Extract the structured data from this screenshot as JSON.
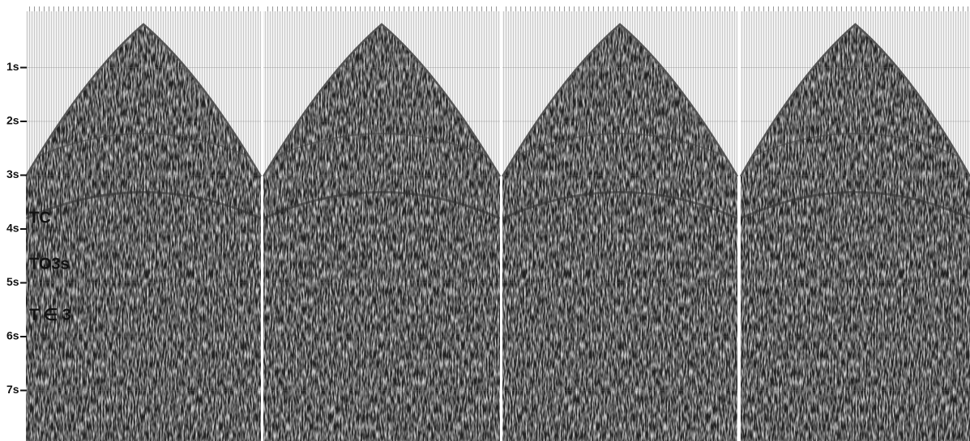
{
  "time_axis": {
    "labels": [
      "1s",
      "2s",
      "3s",
      "4s",
      "5s",
      "6s",
      "7s"
    ]
  },
  "annotations": [
    "TC",
    "TO3s",
    "T ∈ 3"
  ]
}
